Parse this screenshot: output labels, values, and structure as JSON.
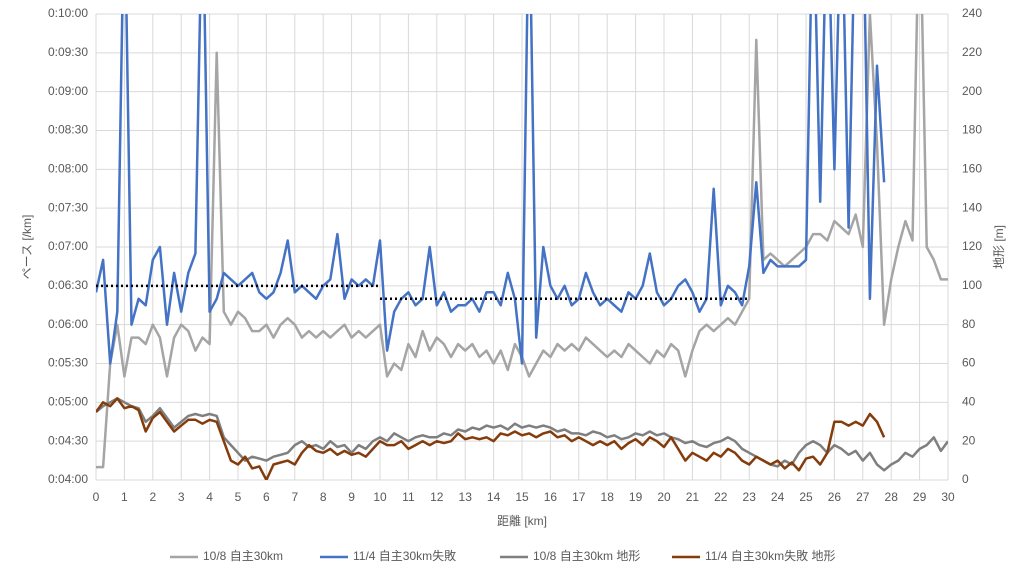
{
  "chart_data": {
    "type": "line",
    "xlabel": "距離 [km]",
    "ylabel": "ペース [/km]",
    "y2label": "地形 [m]",
    "x": [
      0,
      0.25,
      0.5,
      0.75,
      1,
      1.25,
      1.5,
      1.75,
      2,
      2.25,
      2.5,
      2.75,
      3,
      3.25,
      3.5,
      3.75,
      4,
      4.25,
      4.5,
      4.75,
      5,
      5.25,
      5.5,
      5.75,
      6,
      6.25,
      6.5,
      6.75,
      7,
      7.25,
      7.5,
      7.75,
      8,
      8.25,
      8.5,
      8.75,
      9,
      9.25,
      9.5,
      9.75,
      10,
      10.25,
      10.5,
      10.75,
      11,
      11.25,
      11.5,
      11.75,
      12,
      12.25,
      12.5,
      12.75,
      13,
      13.25,
      13.5,
      13.75,
      14,
      14.25,
      14.5,
      14.75,
      15,
      15.25,
      15.5,
      15.75,
      16,
      16.25,
      16.5,
      16.75,
      17,
      17.25,
      17.5,
      17.75,
      18,
      18.25,
      18.5,
      18.75,
      19,
      19.25,
      19.5,
      19.75,
      20,
      20.25,
      20.5,
      20.75,
      21,
      21.25,
      21.5,
      21.75,
      22,
      22.25,
      22.5,
      22.75,
      23,
      23.25,
      23.5,
      23.75,
      24,
      24.25,
      24.5,
      24.75,
      25,
      25.25,
      25.5,
      25.75,
      26,
      26.25,
      26.5,
      26.75,
      27,
      27.25,
      27.5,
      27.75,
      28,
      28.25,
      28.5,
      28.75,
      29,
      29.25,
      29.5,
      29.75,
      30
    ],
    "series": [
      {
        "name": "10/8 自主30km",
        "color": "#a5a5a5",
        "values": [
          250,
          250,
          330,
          360,
          320,
          350,
          350,
          345,
          360,
          350,
          320,
          350,
          360,
          355,
          340,
          350,
          345,
          570,
          370,
          360,
          370,
          365,
          355,
          355,
          360,
          350,
          360,
          365,
          360,
          350,
          355,
          350,
          355,
          350,
          355,
          360,
          350,
          355,
          350,
          355,
          360,
          320,
          330,
          325,
          345,
          335,
          355,
          340,
          350,
          345,
          335,
          345,
          340,
          345,
          335,
          340,
          330,
          340,
          325,
          345,
          335,
          320,
          330,
          340,
          335,
          345,
          340,
          345,
          340,
          350,
          345,
          340,
          335,
          340,
          335,
          345,
          340,
          335,
          330,
          340,
          335,
          345,
          340,
          320,
          340,
          355,
          360,
          355,
          360,
          365,
          360,
          370,
          380,
          580,
          410,
          415,
          410,
          405,
          410,
          415,
          420,
          430,
          430,
          425,
          440,
          435,
          430,
          445,
          420,
          600,
          500,
          360,
          395,
          420,
          440,
          425,
          700,
          420,
          410,
          395,
          395
        ]
      },
      {
        "name": "11/4 自主30km失敗",
        "color": "#4472c4",
        "values": [
          385,
          410,
          330,
          370,
          700,
          360,
          380,
          375,
          410,
          420,
          360,
          400,
          370,
          400,
          415,
          700,
          370,
          380,
          400,
          395,
          390,
          395,
          400,
          385,
          380,
          385,
          400,
          425,
          385,
          390,
          385,
          380,
          390,
          395,
          430,
          380,
          395,
          390,
          395,
          390,
          425,
          340,
          370,
          380,
          385,
          375,
          380,
          420,
          375,
          385,
          370,
          375,
          375,
          380,
          370,
          385,
          385,
          375,
          400,
          380,
          330,
          700,
          350,
          420,
          390,
          380,
          390,
          375,
          380,
          400,
          385,
          375,
          380,
          375,
          370,
          385,
          380,
          390,
          415,
          385,
          375,
          380,
          390,
          395,
          385,
          370,
          380,
          465,
          375,
          390,
          385,
          375,
          405,
          470,
          400,
          410,
          405,
          405,
          405,
          405,
          410,
          700,
          455,
          700,
          480,
          700,
          435,
          700,
          700,
          380,
          560,
          470,
          null,
          null,
          null,
          null,
          null,
          null,
          null,
          null,
          null
        ]
      },
      {
        "name": "10/8 自主30km 地形",
        "color": "#7f7f7f",
        "axis": "y2",
        "values": [
          35,
          38,
          40,
          42,
          40,
          38,
          37,
          30,
          33,
          37,
          32,
          27,
          30,
          33,
          34,
          33,
          34,
          33,
          22,
          18,
          14,
          10,
          12,
          11,
          10,
          12,
          13,
          14,
          18,
          20,
          17,
          18,
          16,
          20,
          17,
          18,
          14,
          18,
          16,
          20,
          22,
          20,
          24,
          22,
          20,
          22,
          23,
          22,
          22,
          24,
          23,
          26,
          25,
          27,
          26,
          28,
          27,
          28,
          26,
          29,
          27,
          28,
          27,
          28,
          27,
          25,
          26,
          24,
          24,
          23,
          25,
          24,
          22,
          23,
          21,
          22,
          24,
          23,
          25,
          23,
          24,
          22,
          21,
          19,
          20,
          18,
          17,
          19,
          20,
          22,
          20,
          16,
          14,
          12,
          10,
          8,
          7,
          10,
          8,
          14,
          18,
          20,
          18,
          14,
          18,
          16,
          13,
          15,
          10,
          14,
          8,
          5,
          8,
          10,
          14,
          12,
          16,
          18,
          22,
          15,
          20
        ]
      },
      {
        "name": "11/4 自主30km失敗 地形",
        "color": "#843c0c",
        "axis": "y2",
        "values": [
          35,
          40,
          38,
          42,
          37,
          38,
          36,
          25,
          32,
          35,
          30,
          25,
          28,
          31,
          31,
          29,
          31,
          30,
          20,
          10,
          8,
          12,
          6,
          7,
          0,
          8,
          9,
          10,
          8,
          14,
          18,
          15,
          14,
          16,
          13,
          15,
          13,
          14,
          12,
          16,
          20,
          18,
          18,
          20,
          16,
          18,
          20,
          18,
          20,
          19,
          20,
          24,
          21,
          22,
          21,
          22,
          20,
          24,
          23,
          25,
          23,
          24,
          22,
          24,
          25,
          22,
          23,
          20,
          22,
          20,
          18,
          20,
          18,
          20,
          16,
          19,
          21,
          18,
          22,
          20,
          17,
          22,
          16,
          10,
          14,
          12,
          10,
          14,
          12,
          16,
          14,
          10,
          8,
          12,
          10,
          8,
          10,
          6,
          9,
          5,
          11,
          12,
          8,
          14,
          30,
          30,
          28,
          30,
          28,
          34,
          30,
          22,
          null,
          null,
          null,
          null,
          null,
          null,
          null,
          null,
          null
        ]
      }
    ],
    "reference_lines": [
      {
        "x": [
          0,
          10
        ],
        "values": [
          390,
          390
        ]
      },
      {
        "x": [
          10,
          23
        ],
        "values": [
          380,
          380
        ]
      }
    ],
    "xlim": [
      0,
      30
    ],
    "xticks": [
      0,
      1,
      2,
      3,
      4,
      5,
      6,
      7,
      8,
      9,
      10,
      11,
      12,
      13,
      14,
      15,
      16,
      17,
      18,
      19,
      20,
      21,
      22,
      23,
      24,
      25,
      26,
      27,
      28,
      29,
      30
    ],
    "ylim": [
      240,
      600
    ],
    "yticks": [
      {
        "value": 240,
        "label": "0:04:00"
      },
      {
        "value": 270,
        "label": "0:04:30"
      },
      {
        "value": 300,
        "label": "0:05:00"
      },
      {
        "value": 330,
        "label": "0:05:30"
      },
      {
        "value": 360,
        "label": "0:06:00"
      },
      {
        "value": 390,
        "label": "0:06:30"
      },
      {
        "value": 420,
        "label": "0:07:00"
      },
      {
        "value": 450,
        "label": "0:07:30"
      },
      {
        "value": 480,
        "label": "0:08:00"
      },
      {
        "value": 510,
        "label": "0:08:30"
      },
      {
        "value": 540,
        "label": "0:09:00"
      },
      {
        "value": 570,
        "label": "0:09:30"
      },
      {
        "value": 600,
        "label": "0:10:00"
      }
    ],
    "y2lim": [
      0,
      240
    ],
    "y2ticks": [
      0,
      20,
      40,
      60,
      80,
      100,
      120,
      140,
      160,
      180,
      200,
      220,
      240
    ],
    "grid": true,
    "legend": "bottom"
  }
}
